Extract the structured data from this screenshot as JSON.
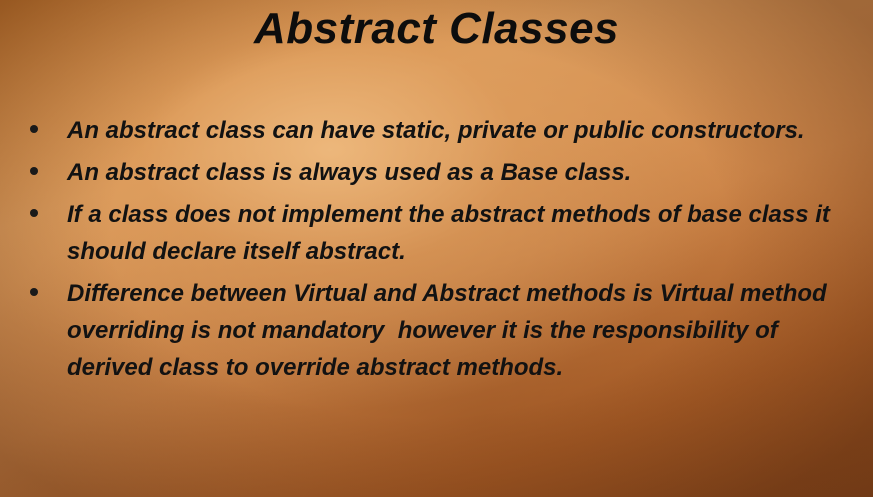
{
  "slide": {
    "title": "Abstract Classes",
    "bullets": [
      "An abstract class can have static, private or public constructors.",
      "An abstract class is always used as a Base class.",
      "If a class does not implement the abstract methods of base class it should declare itself abstract.",
      "Difference between Virtual and Abstract methods is Virtual method overriding is not mandatory  however it is the responsibility of derived class to override abstract methods."
    ],
    "colors": {
      "background_light": "#d9995a",
      "background_dark": "#8f4c1f",
      "text": "#121212"
    }
  }
}
